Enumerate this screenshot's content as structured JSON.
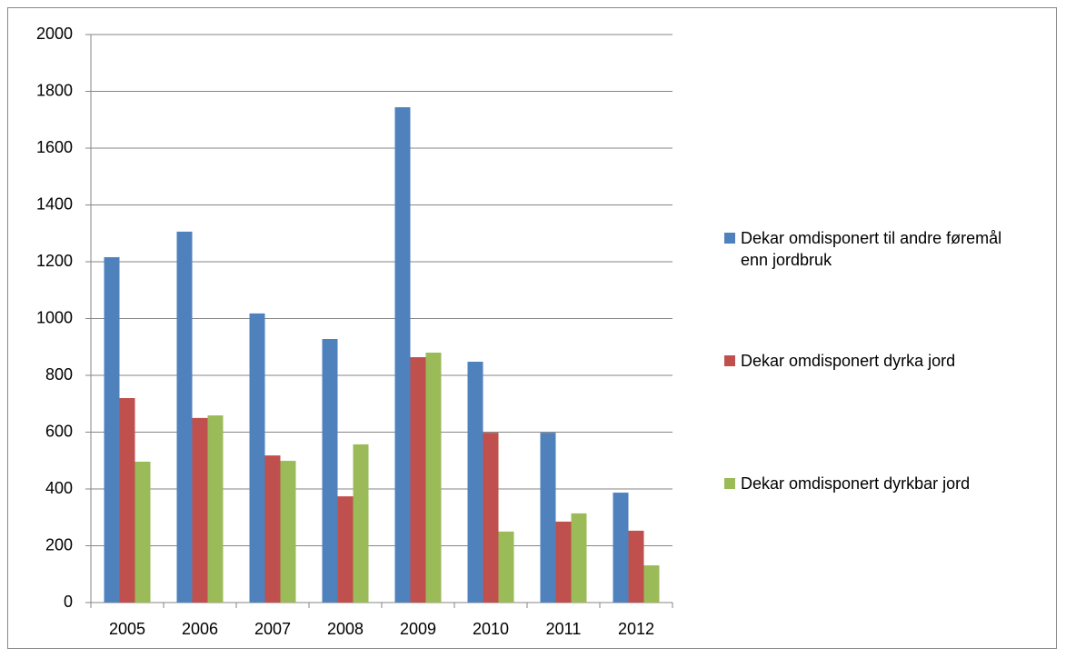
{
  "chart_data": {
    "type": "bar",
    "categories": [
      "2005",
      "2006",
      "2007",
      "2008",
      "2009",
      "2010",
      "2011",
      "2012"
    ],
    "series": [
      {
        "name": "Dekar omdisponert til andre føremål enn jordbruk",
        "color": "#4f81bd",
        "values": [
          1216,
          1306,
          1018,
          928,
          1744,
          848,
          598,
          387
        ]
      },
      {
        "name": "Dekar omdisponert dyrka jord",
        "color": "#c0504d",
        "values": [
          720,
          650,
          518,
          374,
          864,
          598,
          285,
          253
        ]
      },
      {
        "name": "Dekar omdisponert dyrkbar jord",
        "color": "#9bbb59",
        "values": [
          496,
          659,
          499,
          557,
          880,
          250,
          314,
          131
        ]
      }
    ],
    "ylim": [
      0,
      2000
    ],
    "yticks": [
      0,
      200,
      400,
      600,
      800,
      1000,
      1200,
      1400,
      1600,
      1800,
      2000
    ],
    "grid": true,
    "legend": "right"
  }
}
